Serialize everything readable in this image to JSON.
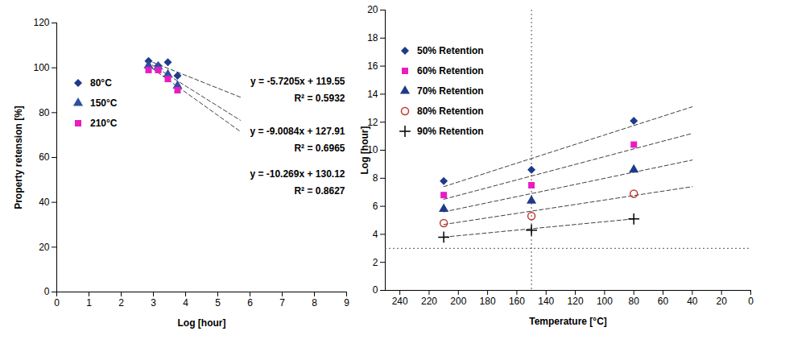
{
  "chart_data": [
    {
      "type": "scatter",
      "x_label": "Log [hour]",
      "y_label": "Property retension [%]",
      "xlim": [
        0,
        9
      ],
      "xticks": [
        0,
        1,
        2,
        3,
        4,
        5,
        6,
        7,
        8,
        9
      ],
      "ylim": [
        0,
        120
      ],
      "yticks": [
        0,
        20,
        40,
        60,
        80,
        100,
        120
      ],
      "grid": false,
      "legend": "top-left",
      "series": [
        {
          "name": "80°C",
          "color": "#1f3a8a",
          "marker": "diamond",
          "x": [
            2.85,
            3.15,
            3.45,
            3.75
          ],
          "values": [
            103,
            101,
            102.5,
            96.5
          ],
          "trend": {
            "x": [
              2.8,
              5.7
            ],
            "values": [
              103.5,
              86.9
            ],
            "color": "#404040",
            "line_style": "dashed",
            "equation": "y = -5.7205x + 119.55",
            "r2_label": "R² = 0.5932"
          }
        },
        {
          "name": "150°C",
          "color": "#2f4f9f",
          "marker": "triangle",
          "x": [
            2.85,
            3.15,
            3.45,
            3.75
          ],
          "values": [
            101,
            100.5,
            97,
            92
          ],
          "trend": {
            "x": [
              2.8,
              5.7
            ],
            "values": [
              102.7,
              76.6
            ],
            "color": "#404040",
            "line_style": "dashed",
            "equation": "y = -9.0084x + 127.91",
            "r2_label": "R² = 0.6965"
          }
        },
        {
          "name": "210°C",
          "color": "#e81cc4",
          "marker": "square",
          "x": [
            2.85,
            3.15,
            3.45,
            3.75
          ],
          "values": [
            99,
            99,
            95,
            90
          ],
          "trend": {
            "x": [
              2.8,
              5.7
            ],
            "values": [
              101.4,
              71.6
            ],
            "color": "#404040",
            "line_style": "dashed",
            "equation": "y = -10.269x + 130.12",
            "r2_label": "R² = 0.8627"
          }
        }
      ]
    },
    {
      "type": "scatter",
      "x_label": "Temperature [°C]",
      "y_label": "Log [hour]",
      "xlim": [
        250,
        0
      ],
      "xticks": [
        240,
        220,
        200,
        180,
        160,
        140,
        120,
        100,
        80,
        60,
        40,
        20,
        0
      ],
      "ylim": [
        0,
        20
      ],
      "yticks": [
        0,
        2,
        4,
        6,
        8,
        10,
        12,
        14,
        16,
        18,
        20
      ],
      "grid": false,
      "legend": "top-left",
      "vlines": [
        150
      ],
      "hlines": [
        3
      ],
      "series": [
        {
          "name": "50% Retention",
          "color": "#1f3a8a",
          "marker": "diamond",
          "x": [
            210,
            150,
            80
          ],
          "values": [
            7.8,
            8.6,
            12.1
          ],
          "trend": {
            "x": [
              210,
              40
            ],
            "values": [
              7.4,
              13.1
            ],
            "color": "#404040",
            "line_style": "dashed"
          }
        },
        {
          "name": "60% Retention",
          "color": "#e81cc4",
          "marker": "square",
          "x": [
            210,
            150,
            80
          ],
          "values": [
            6.8,
            7.5,
            10.4
          ],
          "trend": {
            "x": [
              210,
              40
            ],
            "values": [
              6.5,
              11.2
            ],
            "color": "#404040",
            "line_style": "dashed"
          }
        },
        {
          "name": "70% Retention",
          "color": "#1f3a8a",
          "marker": "triangle",
          "x": [
            210,
            150,
            80
          ],
          "values": [
            5.8,
            6.4,
            8.6
          ],
          "trend": {
            "x": [
              210,
              40
            ],
            "values": [
              5.6,
              9.3
            ],
            "color": "#404040",
            "line_style": "dashed"
          }
        },
        {
          "name": "80% Retention",
          "color": "#c0392b",
          "marker": "hollow-circle",
          "x": [
            210,
            150,
            80
          ],
          "values": [
            4.8,
            5.3,
            6.9
          ],
          "trend": {
            "x": [
              210,
              40
            ],
            "values": [
              4.7,
              7.4
            ],
            "color": "#404040",
            "line_style": "dashed"
          }
        },
        {
          "name": "90% Retention",
          "color": "#000000",
          "marker": "plus",
          "x": [
            210,
            150,
            80
          ],
          "values": [
            3.8,
            4.3,
            5.1
          ],
          "trend": {
            "x": [
              210,
              80
            ],
            "values": [
              3.8,
              5.1
            ],
            "color": "#404040",
            "line_style": "dashed"
          }
        }
      ]
    }
  ]
}
